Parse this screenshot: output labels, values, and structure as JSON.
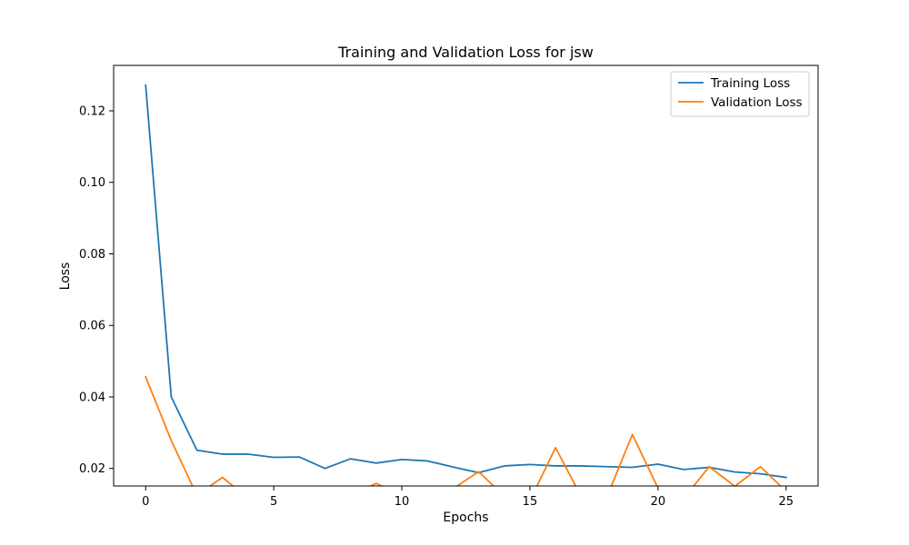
{
  "chart_data": {
    "type": "line",
    "title": "Training and Validation Loss for jsw",
    "xlabel": "Epochs",
    "ylabel": "Loss",
    "xlim": [
      -1.25,
      26.25
    ],
    "ylim": [
      0.0151,
      0.1327
    ],
    "xticks": [
      0,
      5,
      10,
      15,
      20,
      25
    ],
    "xtick_labels": [
      "0",
      "5",
      "10",
      "15",
      "20",
      "25"
    ],
    "yticks": [
      0.02,
      0.04,
      0.06,
      0.08,
      0.1,
      0.12
    ],
    "ytick_labels": [
      "0.02",
      "0.04",
      "0.06",
      "0.08",
      "0.10",
      "0.12"
    ],
    "grid": false,
    "legend": "top-right",
    "x": [
      0,
      1,
      2,
      3,
      4,
      5,
      6,
      7,
      8,
      9,
      10,
      11,
      12,
      13,
      14,
      15,
      16,
      17,
      18,
      19,
      20,
      21,
      22,
      23,
      24,
      25
    ],
    "series": [
      {
        "name": "Training Loss",
        "color": "#1f77b4",
        "values": [
          0.1272,
          0.04,
          0.0251,
          0.024,
          0.024,
          0.0231,
          0.0232,
          0.02,
          0.0227,
          0.0215,
          0.0225,
          0.0221,
          0.0204,
          0.0188,
          0.0207,
          0.0211,
          0.0207,
          0.0207,
          0.0205,
          0.0203,
          0.0212,
          0.0197,
          0.0203,
          0.019,
          0.0185,
          0.0175
        ]
      },
      {
        "name": "Validation Loss",
        "color": "#ff7f0e",
        "values": [
          0.0456,
          0.0278,
          0.0125,
          0.0175,
          0.0116,
          0.0133,
          0.0116,
          0.0127,
          0.0125,
          0.0158,
          0.0125,
          0.0119,
          0.0143,
          0.0191,
          0.0122,
          0.011,
          0.0258,
          0.0122,
          0.0119,
          0.0295,
          0.0145,
          0.0116,
          0.0205,
          0.015,
          0.0205,
          0.0136
        ]
      }
    ]
  }
}
